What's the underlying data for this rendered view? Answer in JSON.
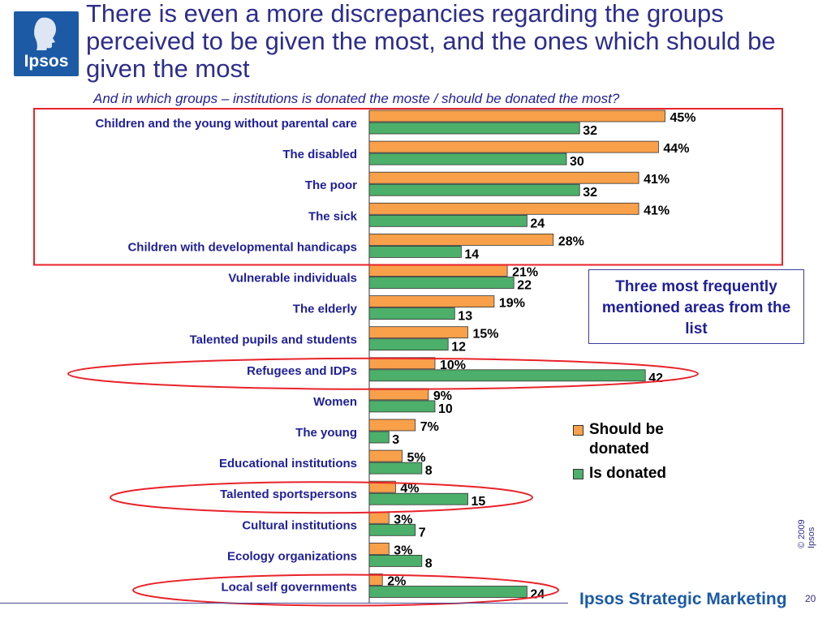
{
  "header": {
    "logo_text": "Ipsos",
    "title": "There is even a more discrepancies regarding the groups perceived to be given the most, and the ones which should be given the most",
    "subtitle": "And in which groups – institutions is donated the moste  / should be donated the most?"
  },
  "callout": {
    "text": "Three most frequently mentioned areas from the list"
  },
  "legend": {
    "items": [
      {
        "label": "Should be donated",
        "color": "#f8a04a"
      },
      {
        "label": "Is donated",
        "color": "#4caf6a"
      }
    ]
  },
  "footer": {
    "copyright": "© 2009 Ipsos",
    "brand": "Ipsos Strategic Marketing",
    "page_number": "20"
  },
  "colors": {
    "highlight": "#e8232a",
    "should": "#f8a04a",
    "is": "#4caf6a",
    "text": "#1f1f96"
  },
  "chart_data": {
    "type": "bar",
    "orientation": "horizontal",
    "categories": [
      "Children and the young without parental care",
      "The disabled",
      "The poor",
      "The sick",
      "Children with developmental handicaps",
      "Vulnerable individuals",
      "The elderly",
      "Talented pupils and students",
      "Refugees and IDPs",
      "Women",
      "The young",
      "Educational institutions",
      "Talented sportspersons",
      "Cultural institutions",
      "Ecology organizations",
      "Local self governments"
    ],
    "series": [
      {
        "name": "Should be donated",
        "values": [
          45,
          44,
          41,
          41,
          28,
          21,
          19,
          15,
          10,
          9,
          7,
          5,
          4,
          3,
          3,
          2
        ],
        "labels": [
          "45%",
          "44%",
          "41%",
          "41%",
          "28%",
          "21%",
          "19%",
          "15%",
          "10%",
          "9%",
          "7%",
          "5%",
          "4%",
          "3%",
          "3%",
          "2%"
        ]
      },
      {
        "name": "Is donated",
        "values": [
          32,
          30,
          32,
          24,
          14,
          22,
          13,
          12,
          42,
          10,
          3,
          8,
          15,
          7,
          8,
          24
        ],
        "labels": [
          "32",
          "30",
          "32",
          "24",
          "14",
          "22",
          "13",
          "12",
          "42",
          "10",
          "3",
          "8",
          "15",
          "7",
          "8",
          "24"
        ]
      }
    ],
    "highlight_box_categories": [
      0,
      4
    ],
    "highlight_ellipse_categories": [
      8,
      12,
      15
    ],
    "grid": false
  }
}
